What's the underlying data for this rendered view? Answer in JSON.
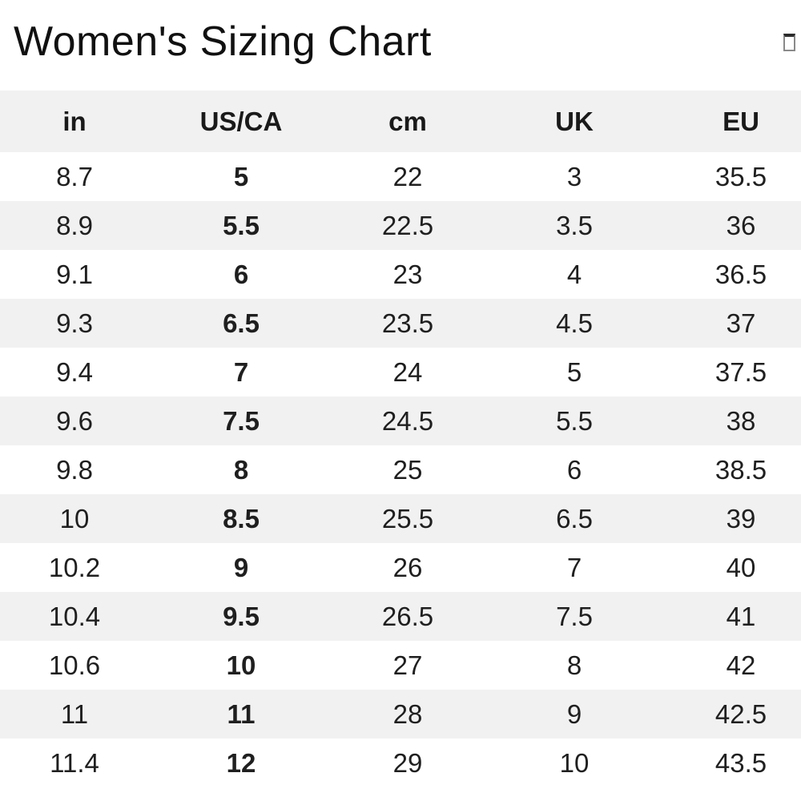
{
  "title": "Women's Sizing Chart",
  "corner_icon": "square-outline",
  "colors": {
    "stripe": "#f1f1f1",
    "text": "#1a1a1a",
    "title": "#111111",
    "background": "#ffffff"
  },
  "chart_data": {
    "type": "table",
    "title": "Women's Sizing Chart",
    "columns": [
      "in",
      "US/CA",
      "cm",
      "UK",
      "EU"
    ],
    "bold_column": "US/CA",
    "zebra_striping": true,
    "rows": [
      [
        "8.7",
        "5",
        "22",
        "3",
        "35.5"
      ],
      [
        "8.9",
        "5.5",
        "22.5",
        "3.5",
        "36"
      ],
      [
        "9.1",
        "6",
        "23",
        "4",
        "36.5"
      ],
      [
        "9.3",
        "6.5",
        "23.5",
        "4.5",
        "37"
      ],
      [
        "9.4",
        "7",
        "24",
        "5",
        "37.5"
      ],
      [
        "9.6",
        "7.5",
        "24.5",
        "5.5",
        "38"
      ],
      [
        "9.8",
        "8",
        "25",
        "6",
        "38.5"
      ],
      [
        "10",
        "8.5",
        "25.5",
        "6.5",
        "39"
      ],
      [
        "10.2",
        "9",
        "26",
        "7",
        "40"
      ],
      [
        "10.4",
        "9.5",
        "26.5",
        "7.5",
        "41"
      ],
      [
        "10.6",
        "10",
        "27",
        "8",
        "42"
      ],
      [
        "11",
        "11",
        "28",
        "9",
        "42.5"
      ],
      [
        "11.4",
        "12",
        "29",
        "10",
        "43.5"
      ]
    ]
  }
}
